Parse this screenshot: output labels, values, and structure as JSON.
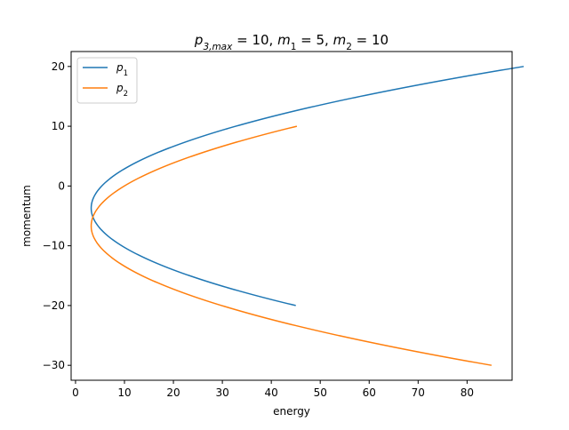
{
  "colors": {
    "series_1": "#1f77b4",
    "series_2": "#ff7f0e"
  },
  "chart_data": {
    "type": "line",
    "title": "p3,max = 10, m1 = 5, m2 = 10",
    "title_parts": [
      {
        "t": "p",
        "style": "italic"
      },
      {
        "t": "3,max",
        "style": "italic",
        "sub": true
      },
      {
        "t": " = 10, ",
        "style": "normal"
      },
      {
        "t": "m",
        "style": "italic"
      },
      {
        "t": "1",
        "style": "normal",
        "sub": true
      },
      {
        "t": " = 5, ",
        "style": "normal"
      },
      {
        "t": "m",
        "style": "italic"
      },
      {
        "t": "2",
        "style": "normal",
        "sub": true
      },
      {
        "t": " = 10",
        "style": "normal"
      }
    ],
    "xlabel": "energy",
    "ylabel": "momentum",
    "xlim": [
      -0.9,
      89.2
    ],
    "ylim": [
      -32.5,
      22.5
    ],
    "xticks": [
      0,
      10,
      20,
      30,
      40,
      50,
      60,
      70,
      80
    ],
    "yticks": [
      -30,
      -20,
      -10,
      0,
      10,
      20
    ],
    "grid": false,
    "legend": "top-left",
    "series": [
      {
        "name": "p1",
        "name_base": "p",
        "name_sub": "1",
        "color": "#1f77b4",
        "p_range": [
          -20,
          20
        ],
        "vertex": {
          "energy": 3.2,
          "momentum": -3.7
        },
        "endpoints": [
          {
            "energy": 45.0,
            "momentum": -20
          },
          {
            "energy": 85.0,
            "momentum": 20
          }
        ]
      },
      {
        "name": "p2",
        "name_base": "p",
        "name_sub": "2",
        "color": "#ff7f0e",
        "p_range": [
          -30,
          10
        ],
        "vertex": {
          "energy": 3.2,
          "momentum": -6.7
        },
        "endpoints": [
          {
            "energy": 85.0,
            "momentum": -30
          },
          {
            "energy": 45.0,
            "momentum": 10
          }
        ]
      }
    ]
  }
}
